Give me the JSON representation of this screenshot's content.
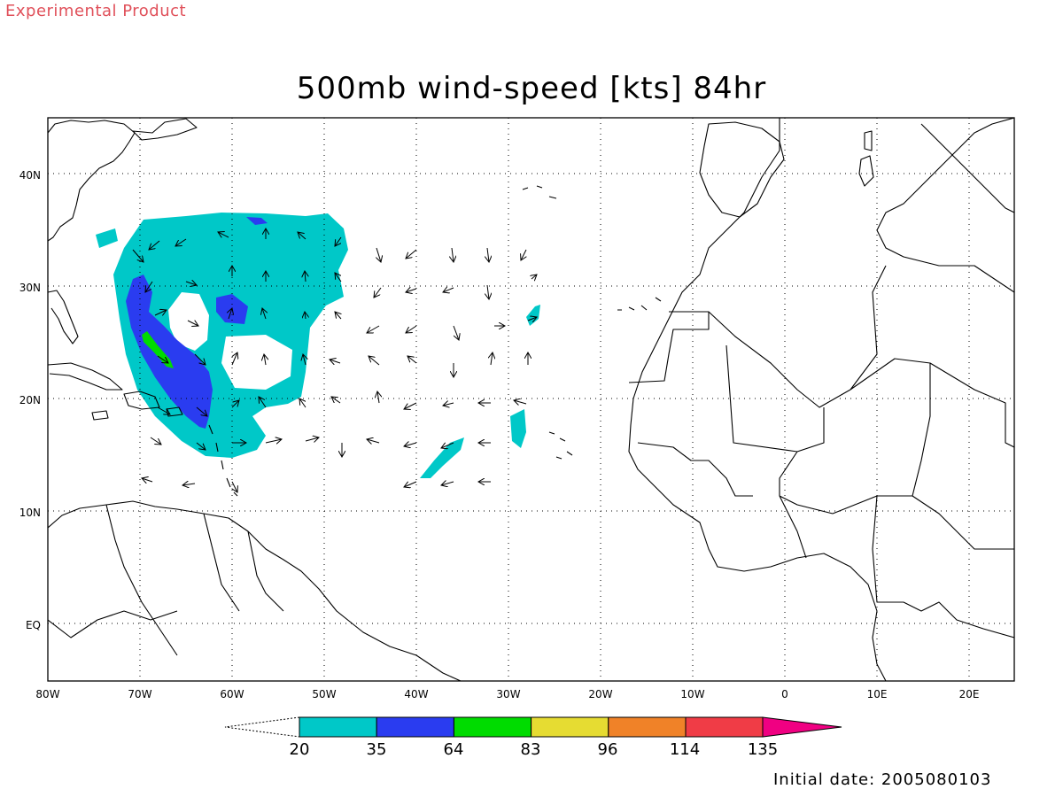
{
  "header": {
    "experimental_label": "Experimental Product",
    "title": "500mb wind-speed [kts] 84hr"
  },
  "map": {
    "lon_range": [
      -80,
      25
    ],
    "lat_range": [
      -6,
      45
    ],
    "lon_ticks": [
      "80W",
      "70W",
      "60W",
      "50W",
      "40W",
      "30W",
      "20W",
      "10W",
      "0",
      "10E",
      "20E"
    ],
    "lat_ticks": [
      "40N",
      "30N",
      "20N",
      "10N",
      "EQ"
    ],
    "gridlines": true
  },
  "colorbar": {
    "labels": [
      "20",
      "35",
      "64",
      "83",
      "96",
      "114",
      "135"
    ],
    "colors": [
      "#00c8c8",
      "#2a3cf0",
      "#00dc00",
      "#e6dc32",
      "#f08228",
      "#f03c46",
      "#f00082"
    ]
  },
  "footer": {
    "initial_date": "Initial date: 2005080103"
  }
}
